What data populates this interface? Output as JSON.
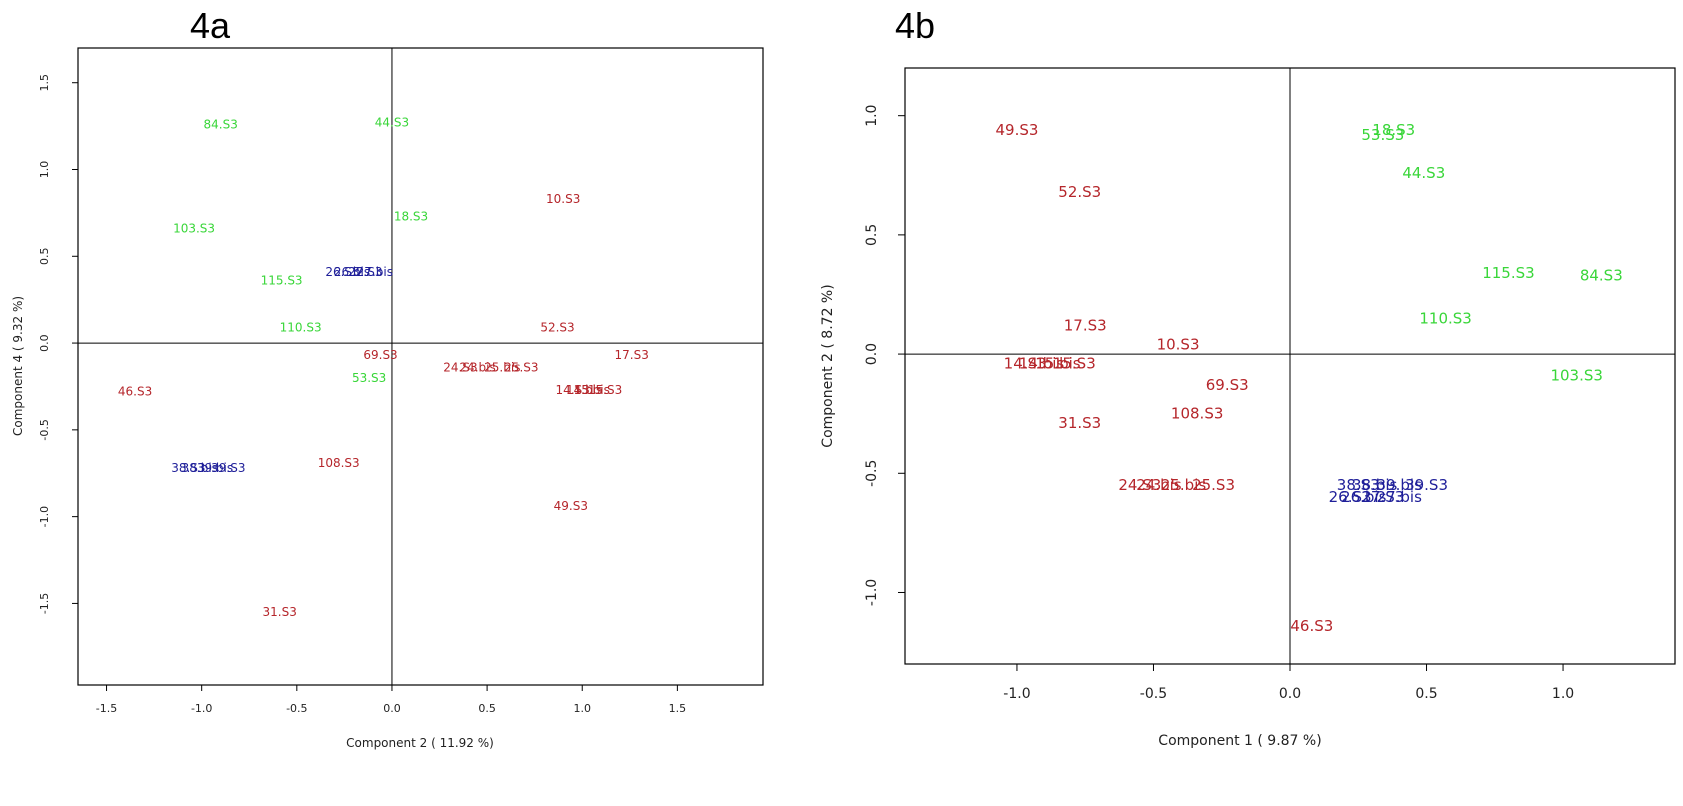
{
  "colors": {
    "group_red": "#b5262b",
    "group_green": "#39d639",
    "group_blue": "#1f1f99",
    "frame": "#000000"
  },
  "chart_data": [
    {
      "type": "scatter",
      "panel_label": "4a",
      "xlabel": "Component 2 ( 11.92 %)",
      "ylabel": "Component 4 ( 9.32 %)",
      "xlim": [
        -1.65,
        1.95
      ],
      "ylim": [
        -1.97,
        1.7
      ],
      "xticks": [
        -1.5,
        -1.0,
        -0.5,
        0.0,
        0.5,
        1.0,
        1.5
      ],
      "xtick_labels": [
        "-1.5",
        "-1.0",
        "-0.5",
        "0.0",
        "0.5",
        "1.0",
        "1.5"
      ],
      "yticks": [
        -1.5,
        -1.0,
        -0.5,
        0.0,
        0.5,
        1.0,
        1.5
      ],
      "ytick_labels": [
        "-1.5",
        "-1.0",
        "-0.5",
        "0.0",
        "0.5",
        "1.0",
        "1.5"
      ],
      "reference_lines": {
        "x": 0,
        "y": 0
      },
      "points": [
        {
          "label": "84.S3",
          "x": -0.9,
          "y": 1.26,
          "group": "green"
        },
        {
          "label": "44.S3",
          "x": 0.0,
          "y": 1.27,
          "group": "green"
        },
        {
          "label": "103.S3",
          "x": -1.04,
          "y": 0.66,
          "group": "green"
        },
        {
          "label": "18.S3",
          "x": 0.1,
          "y": 0.73,
          "group": "green"
        },
        {
          "label": "115.S3",
          "x": -0.58,
          "y": 0.36,
          "group": "green"
        },
        {
          "label": "110.S3",
          "x": -0.48,
          "y": 0.09,
          "group": "green"
        },
        {
          "label": "53.S3",
          "x": -0.12,
          "y": -0.2,
          "group": "green"
        },
        {
          "label": "10.S3",
          "x": 0.9,
          "y": 0.83,
          "group": "red"
        },
        {
          "label": "52.S3",
          "x": 0.87,
          "y": 0.09,
          "group": "red"
        },
        {
          "label": "17.S3",
          "x": 1.26,
          "y": -0.07,
          "group": "red"
        },
        {
          "label": "69.S3",
          "x": -0.06,
          "y": -0.07,
          "group": "red"
        },
        {
          "label": "24.S3",
          "x": 0.36,
          "y": -0.14,
          "group": "red"
        },
        {
          "label": "24.bis",
          "x": 0.45,
          "y": -0.14,
          "group": "red"
        },
        {
          "label": "25.bis",
          "x": 0.58,
          "y": -0.14,
          "group": "red"
        },
        {
          "label": "25.S3",
          "x": 0.68,
          "y": -0.14,
          "group": "red"
        },
        {
          "label": "14.S3",
          "x": 0.95,
          "y": -0.27,
          "group": "red"
        },
        {
          "label": "14.bis",
          "x": 1.01,
          "y": -0.27,
          "group": "red"
        },
        {
          "label": "15.bis",
          "x": 1.05,
          "y": -0.27,
          "group": "red"
        },
        {
          "label": "15.S3",
          "x": 1.12,
          "y": -0.27,
          "group": "red"
        },
        {
          "label": "46.S3",
          "x": -1.35,
          "y": -0.28,
          "group": "red"
        },
        {
          "label": "108.S3",
          "x": -0.28,
          "y": -0.69,
          "group": "red"
        },
        {
          "label": "49.S3",
          "x": 0.94,
          "y": -0.94,
          "group": "red"
        },
        {
          "label": "31.S3",
          "x": -0.59,
          "y": -1.55,
          "group": "red"
        },
        {
          "label": "26.S3",
          "x": -0.26,
          "y": 0.41,
          "group": "blue"
        },
        {
          "label": "26.bis",
          "x": -0.21,
          "y": 0.41,
          "group": "blue"
        },
        {
          "label": "27.S3",
          "x": -0.14,
          "y": 0.41,
          "group": "blue"
        },
        {
          "label": "27.bis",
          "x": -0.09,
          "y": 0.41,
          "group": "blue"
        },
        {
          "label": "38.S3",
          "x": -1.07,
          "y": -0.72,
          "group": "blue"
        },
        {
          "label": "38.bis",
          "x": -1.01,
          "y": -0.72,
          "group": "blue"
        },
        {
          "label": "39.bis",
          "x": -0.93,
          "y": -0.72,
          "group": "blue"
        },
        {
          "label": "39.S3",
          "x": -0.86,
          "y": -0.72,
          "group": "blue"
        }
      ]
    },
    {
      "type": "scatter",
      "panel_label": "4b",
      "xlabel": "Component 1 ( 9.87 %)",
      "ylabel": "Component 2 ( 8.72 %)",
      "xlim": [
        -1.41,
        1.41
      ],
      "ylim": [
        -1.3,
        1.2
      ],
      "xticks": [
        -1.0,
        -0.5,
        0.0,
        0.5,
        1.0
      ],
      "xtick_labels": [
        "-1.0",
        "-0.5",
        "0.0",
        "0.5",
        "1.0"
      ],
      "yticks": [
        -1.0,
        -0.5,
        0.0,
        0.5,
        1.0
      ],
      "ytick_labels": [
        "-1.0",
        "-0.5",
        "0.0",
        "0.5",
        "1.0"
      ],
      "reference_lines": {
        "x": 0,
        "y": 0
      },
      "points": [
        {
          "label": "49.S3",
          "x": -1.0,
          "y": 0.94,
          "group": "red"
        },
        {
          "label": "52.S3",
          "x": -0.77,
          "y": 0.68,
          "group": "red"
        },
        {
          "label": "17.S3",
          "x": -0.75,
          "y": 0.12,
          "group": "red"
        },
        {
          "label": "10.S3",
          "x": -0.41,
          "y": 0.04,
          "group": "red"
        },
        {
          "label": "14.S3",
          "x": -0.97,
          "y": -0.04,
          "group": "red"
        },
        {
          "label": "14.bis",
          "x": -0.91,
          "y": -0.04,
          "group": "red"
        },
        {
          "label": "15.bis",
          "x": -0.85,
          "y": -0.04,
          "group": "red"
        },
        {
          "label": "15.S3",
          "x": -0.79,
          "y": -0.04,
          "group": "red"
        },
        {
          "label": "69.S3",
          "x": -0.23,
          "y": -0.13,
          "group": "red"
        },
        {
          "label": "108.S3",
          "x": -0.34,
          "y": -0.25,
          "group": "red"
        },
        {
          "label": "31.S3",
          "x": -0.77,
          "y": -0.29,
          "group": "red"
        },
        {
          "label": "24.S3",
          "x": -0.55,
          "y": -0.55,
          "group": "red"
        },
        {
          "label": "24.bis",
          "x": -0.48,
          "y": -0.55,
          "group": "red"
        },
        {
          "label": "25.bis",
          "x": -0.39,
          "y": -0.55,
          "group": "red"
        },
        {
          "label": "25.S3",
          "x": -0.28,
          "y": -0.55,
          "group": "red"
        },
        {
          "label": "46.S3",
          "x": 0.08,
          "y": -1.14,
          "group": "red"
        },
        {
          "label": "18.S3",
          "x": 0.38,
          "y": 0.94,
          "group": "green"
        },
        {
          "label": "53.S3",
          "x": 0.34,
          "y": 0.92,
          "group": "green"
        },
        {
          "label": "44.S3",
          "x": 0.49,
          "y": 0.76,
          "group": "green"
        },
        {
          "label": "115.S3",
          "x": 0.8,
          "y": 0.34,
          "group": "green"
        },
        {
          "label": "84.S3",
          "x": 1.14,
          "y": 0.33,
          "group": "green"
        },
        {
          "label": "110.S3",
          "x": 0.57,
          "y": 0.15,
          "group": "green"
        },
        {
          "label": "103.S3",
          "x": 1.05,
          "y": -0.09,
          "group": "green"
        },
        {
          "label": "38.S3",
          "x": 0.25,
          "y": -0.55,
          "group": "blue"
        },
        {
          "label": "38.bis",
          "x": 0.31,
          "y": -0.55,
          "group": "blue"
        },
        {
          "label": "39.bis",
          "x": 0.4,
          "y": -0.55,
          "group": "blue"
        },
        {
          "label": "39.S3",
          "x": 0.5,
          "y": -0.55,
          "group": "blue"
        },
        {
          "label": "26.S3",
          "x": 0.22,
          "y": -0.6,
          "group": "blue"
        },
        {
          "label": "26.bis",
          "x": 0.27,
          "y": -0.6,
          "group": "blue"
        },
        {
          "label": "27.S3",
          "x": 0.34,
          "y": -0.6,
          "group": "blue"
        },
        {
          "label": "27.bis",
          "x": 0.4,
          "y": -0.6,
          "group": "blue"
        }
      ]
    }
  ]
}
